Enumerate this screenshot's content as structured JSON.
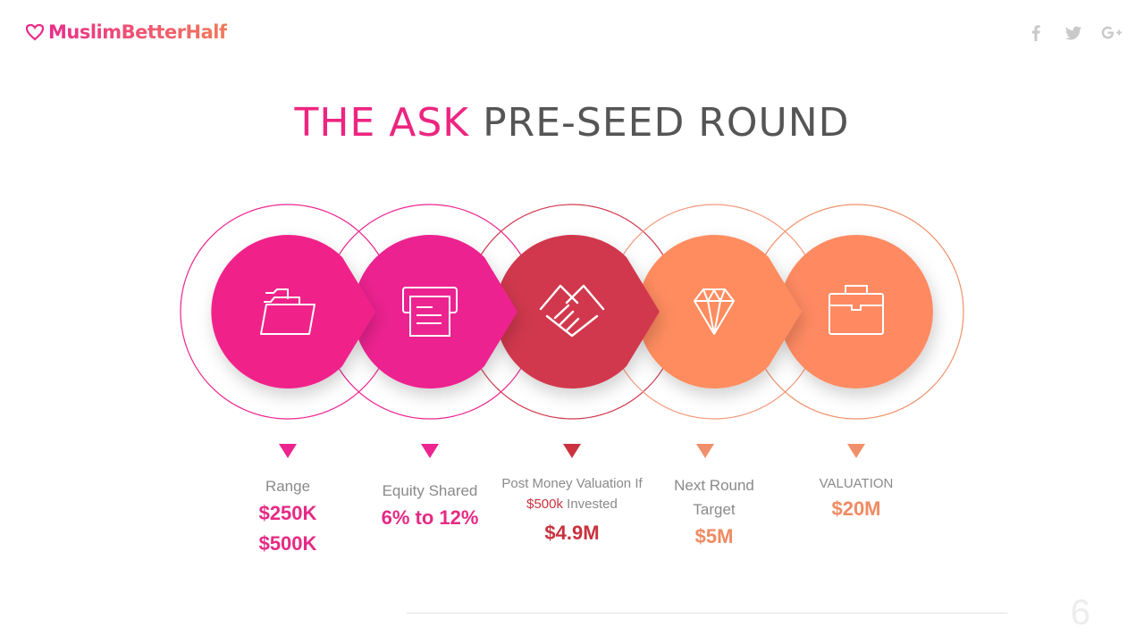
{
  "brand": {
    "name": "MuslimBetterHalf"
  },
  "social": {
    "icons": [
      "facebook-icon",
      "twitter-icon",
      "google-plus-icon"
    ],
    "color": "#c9c9c9"
  },
  "title": {
    "accent": "THE ASK",
    "rest": "PRE-SEED ROUND"
  },
  "colors": {
    "pink": "#f0248a",
    "magenta": "#ec2490",
    "crimson": "#d1394e",
    "orange1": "#ff8c5e",
    "orange2": "#ff8a62"
  },
  "steps": [
    {
      "icon": "folder-icon",
      "label": "Range",
      "values": [
        "$250K",
        "$500K"
      ]
    },
    {
      "icon": "printer-icon",
      "label": "Equity Shared",
      "values": [
        "6% to 12%"
      ]
    },
    {
      "icon": "handshake-icon",
      "label_prefix": "Post Money Valuation If ",
      "label_highlight": "$500k",
      "label_suffix": " Invested",
      "values": [
        "$4.9M"
      ]
    },
    {
      "icon": "diamond-icon",
      "label": "Next Round Target",
      "values": [
        "$5M"
      ]
    },
    {
      "icon": "briefcase-icon",
      "label": "VALUATION",
      "values": [
        "$20M"
      ]
    }
  ],
  "page_number": "6"
}
